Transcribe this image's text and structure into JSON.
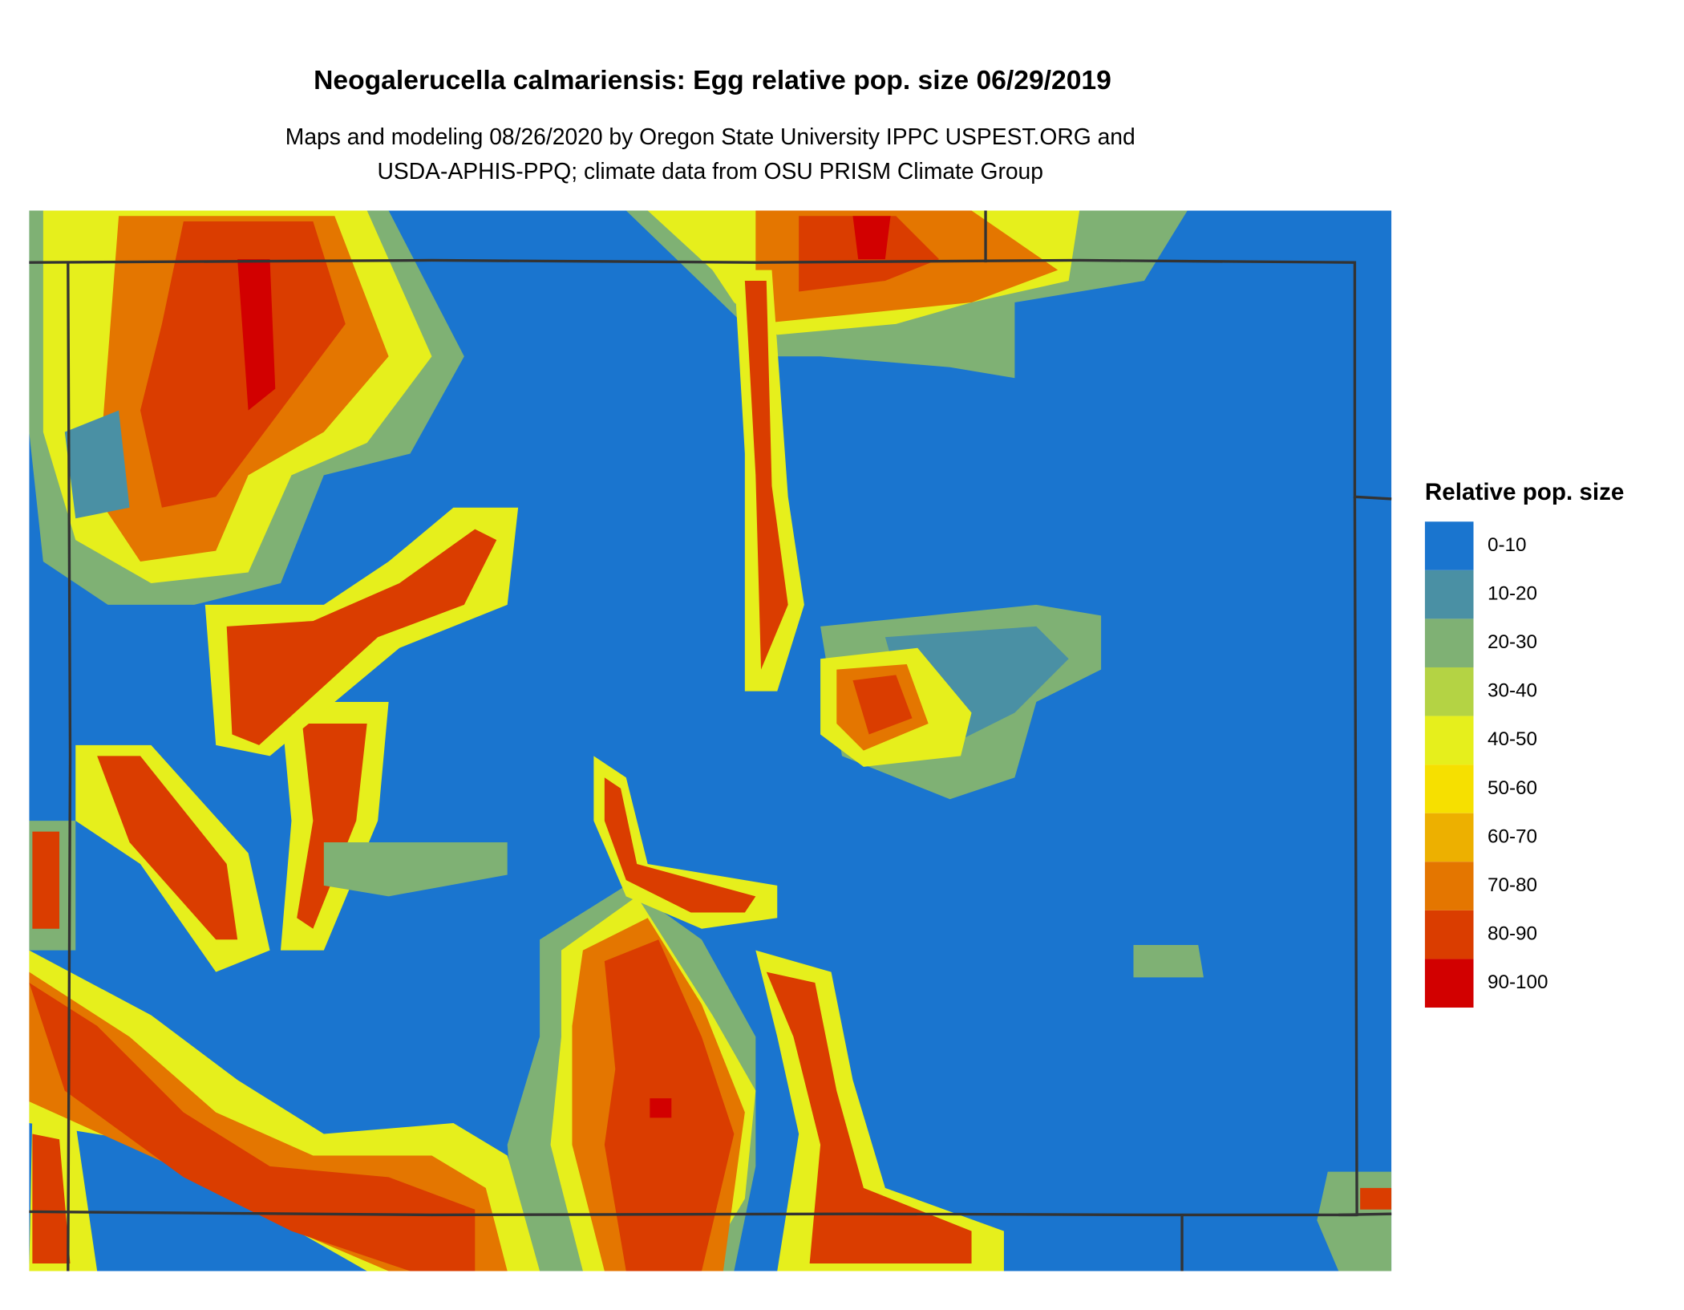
{
  "header": {
    "title": "Neogalerucella calmariensis: Egg relative pop. size 06/29/2019",
    "subtitle_lines": [
      "Maps and modeling 08/26/2020 by Oregon State University IPPC USPEST.ORG and",
      "USDA-APHIS-PPQ; climate data from OSU PRISM Climate Group"
    ]
  },
  "legend": {
    "title": "Relative pop. size",
    "items": [
      {
        "label": "0-10",
        "color": "#1a75cf"
      },
      {
        "label": "10-20",
        "color": "#4a90a4"
      },
      {
        "label": "20-30",
        "color": "#7fb174"
      },
      {
        "label": "30-40",
        "color": "#b4d344"
      },
      {
        "label": "40-50",
        "color": "#e6ef1c"
      },
      {
        "label": "50-60",
        "color": "#f6e000"
      },
      {
        "label": "60-70",
        "color": "#edb000"
      },
      {
        "label": "70-80",
        "color": "#e47600"
      },
      {
        "label": "80-90",
        "color": "#da3d00"
      },
      {
        "label": "90-100",
        "color": "#d20000"
      }
    ]
  }
}
